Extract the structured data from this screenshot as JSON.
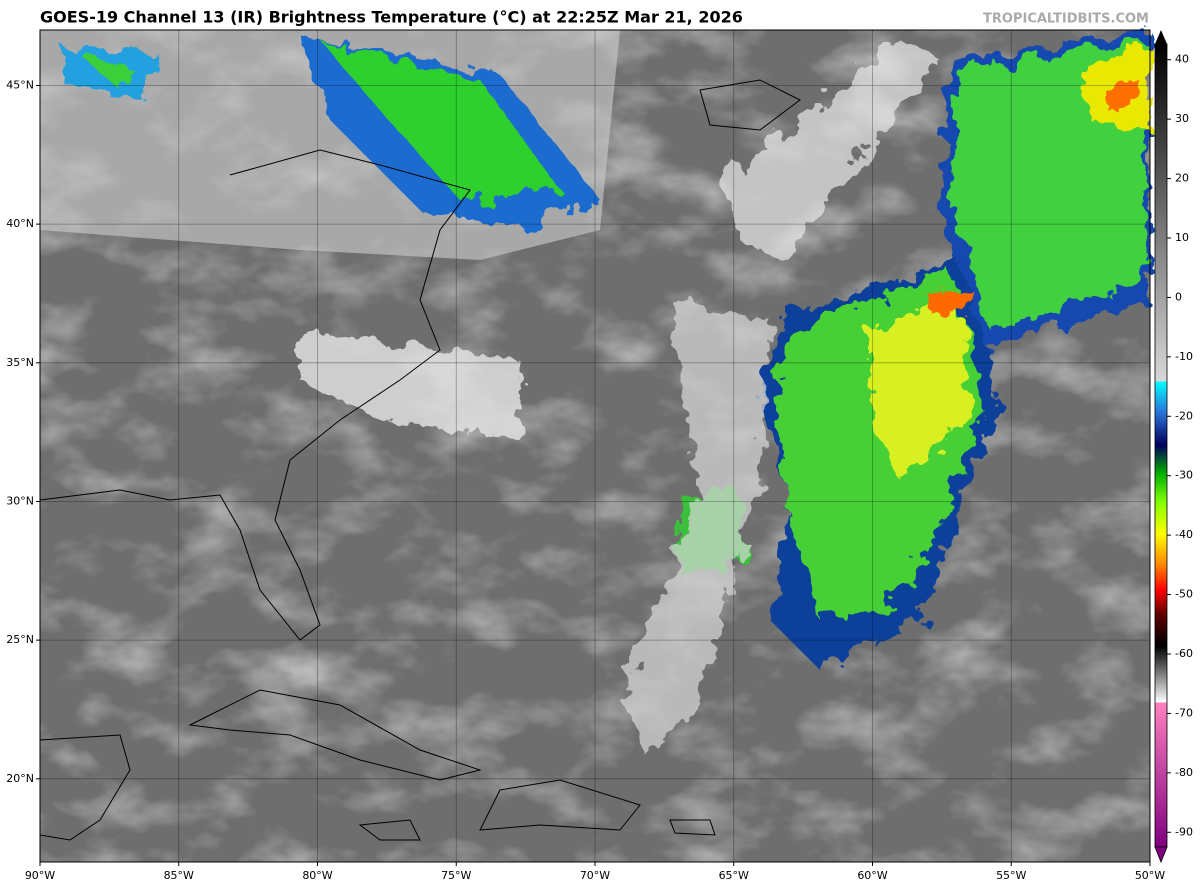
{
  "header": {
    "title": "GOES-19 Channel 13 (IR) Brightness Temperature (°C) at 22:25Z Mar 21, 2026",
    "watermark": "TROPICALTIDBITS.COM"
  },
  "map": {
    "xlim": [
      -90,
      -50
    ],
    "ylim": [
      17,
      47
    ],
    "xticks": [
      {
        "value": -90,
        "label": "90°W"
      },
      {
        "value": -85,
        "label": "85°W"
      },
      {
        "value": -80,
        "label": "80°W"
      },
      {
        "value": -75,
        "label": "75°W"
      },
      {
        "value": -70,
        "label": "70°W"
      },
      {
        "value": -65,
        "label": "65°W"
      },
      {
        "value": -60,
        "label": "60°W"
      },
      {
        "value": -55,
        "label": "55°W"
      },
      {
        "value": -50,
        "label": "50°W"
      }
    ],
    "yticks": [
      {
        "value": 20,
        "label": "20°N"
      },
      {
        "value": 25,
        "label": "25°N"
      },
      {
        "value": 30,
        "label": "30°N"
      },
      {
        "value": 35,
        "label": "35°N"
      },
      {
        "value": 40,
        "label": "40°N"
      },
      {
        "value": 45,
        "label": "45°N"
      }
    ]
  },
  "colorbar": {
    "lim": [
      -95,
      45
    ],
    "ticks": [
      40,
      30,
      20,
      10,
      0,
      -10,
      -20,
      -30,
      -40,
      -50,
      -60,
      -70,
      -80,
      -90
    ]
  }
}
